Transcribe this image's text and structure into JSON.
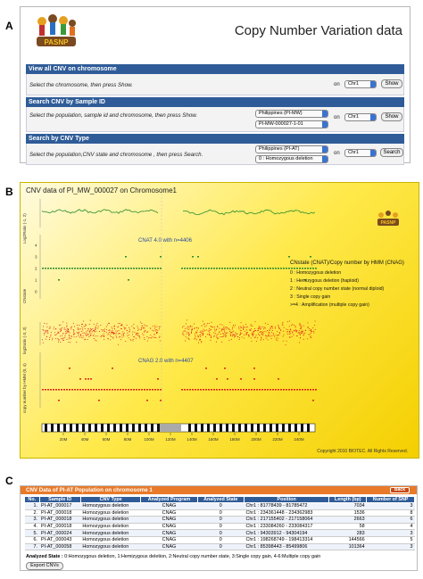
{
  "panel_labels": {
    "a": "A",
    "b": "B",
    "c": "C"
  },
  "panel_a": {
    "title": "Copy Number Variation data",
    "logo_text": "PASNP",
    "sections": [
      {
        "header": "View all CNV on chromosome",
        "instruction": "Select the chromosome, then press Show.",
        "on_label": "on",
        "chr": "Chr1",
        "button": "Show"
      },
      {
        "header": "Search CNV by Sample ID",
        "instruction": "Select the population, sample id and chromosome, then press Show.",
        "population": "Philippines (PI-MW)",
        "sample_id": "PI-MW-000027-1-01",
        "on_label": "on",
        "chr": "Chr1",
        "button": "Show"
      },
      {
        "header": "Search by CNV Type",
        "instruction": "Select the population,CNV state and chromosome , then press Search.",
        "population": "Philippines (PI-AT)",
        "state": "0 : Homozygous deletion",
        "on_label": "on",
        "chr": "Chr1",
        "button": "Search"
      }
    ]
  },
  "panel_b": {
    "title": "CNV data of PI_MW_000027 on Chromosome1",
    "logo_text": "PASNP",
    "track_labels": [
      "Log2Ratio (-1, 2)",
      "CNstate",
      "log2ratio (-3, 3)",
      "copy number by HMM (0, 4)"
    ],
    "cnat_label": "CNAT 4.0 with n=4406",
    "cnag_label": "CNAG 2.0 with n=4407",
    "legend_title": "CNstate (CNAT)/Copy number by HMM (CNAG)",
    "legend_items": [
      "0 : Homozygous deletion",
      "1 : Hemizygous deletion (haploid)",
      "2 : Neutral copy number state (normal diploid)",
      "3 : Single copy gain",
      ">=4 : Amplification (multiple copy gain)"
    ],
    "cnstate_ticks": [
      "4",
      "3",
      "2",
      "1",
      "0"
    ],
    "ideogram_ticks": [
      "20M",
      "40M",
      "60M",
      "80M",
      "100M",
      "120M",
      "140M",
      "160M",
      "180M",
      "200M",
      "220M",
      "240M"
    ],
    "copyright": "Copyright 2010 BIOTEC. All Rights Reserved."
  },
  "panel_c": {
    "title": "CNV Data of PI-AT Population on chromosome 1",
    "back": "Back",
    "columns": [
      "No.",
      "Sample ID",
      "CNV Type",
      "Analyzed Program",
      "Analyzed State",
      "Position",
      "Length (bp)",
      "Number of SNP"
    ],
    "rows": [
      [
        "1.",
        "PI-AT_000017",
        "Homozygous deletion",
        "CNAG",
        "0",
        "Chr1 : 81778439 - 81785472",
        "7034",
        "3"
      ],
      [
        "2.",
        "PI-AT_000018",
        "Homozygous deletion",
        "CNAG",
        "0",
        "Chr1 : 234361448 - 234362983",
        "1536",
        "8"
      ],
      [
        "3.",
        "PI-AT_000018",
        "Homozygous deletion",
        "CNAG",
        "0",
        "Chr1 : 217155402 - 217158064",
        "2663",
        "6"
      ],
      [
        "4.",
        "PI-AT_000018",
        "Homozygous deletion",
        "CNAG",
        "0",
        "Chr1 : 233084260 - 233084317",
        "58",
        "4"
      ],
      [
        "5.",
        "PI-AT_000024",
        "Homozygous deletion",
        "CNAG",
        "0",
        "Chr1 : 94303912 - 94304194",
        "283",
        "3"
      ],
      [
        "6.",
        "PI-AT_000043",
        "Homozygous deletion",
        "CNAG",
        "0",
        "Chr1 : 198268749 - 198413314",
        "144566",
        "5"
      ],
      [
        "7.",
        "PI-AT_000058",
        "Homozygous deletion",
        "CNAG",
        "0",
        "Chr1 : 85398443 - 85499806",
        "101364",
        "3"
      ]
    ],
    "analyzed_state_label": "Analyzed State :",
    "analyzed_state_text": "0:Homozygous deletion, 1:Hemizygous deletion, 2:Neutral copy number state, 3:Single copy gain, 4-6:Multiple copy gain",
    "export_button": "Export CNVs"
  },
  "colors": {
    "header_blue": "#2f5c98",
    "orange": "#e87a2a",
    "green": "#2a8a2a",
    "red": "#e0201a"
  }
}
